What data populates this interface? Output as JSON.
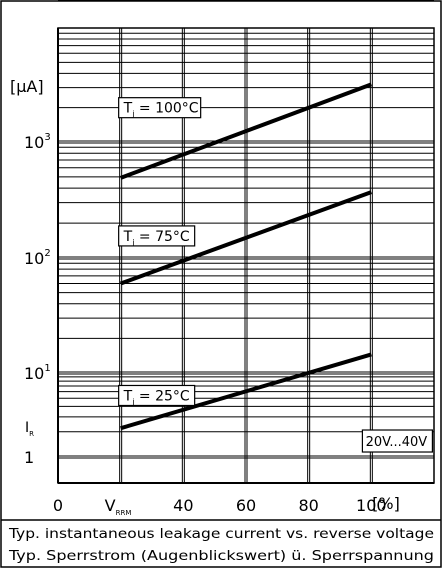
{
  "chart_data": {
    "type": "line",
    "y_scale": "log",
    "ylim": [
      0.6,
      10000
    ],
    "xlim": [
      0,
      120
    ],
    "x_ticks": [
      0,
      20,
      40,
      60,
      80,
      100
    ],
    "x_tick_labels": [
      "0",
      "",
      "40",
      "60",
      "80",
      "100"
    ],
    "x_label_main": "V",
    "x_label_sub": "RRM",
    "x_unit": "[%]",
    "y_ticks": [
      {
        "value": 1,
        "base": "1",
        "exp": ""
      },
      {
        "value": 10,
        "base": "10",
        "exp": "1"
      },
      {
        "value": 100,
        "base": "10",
        "exp": "2"
      },
      {
        "value": 1000,
        "base": "10",
        "exp": "3"
      },
      {
        "value": 10000,
        "base": "10",
        "exp": "4"
      }
    ],
    "y_unit": "[µA]",
    "y_symbol_main": "I",
    "y_symbol_sub": "R",
    "grid": true,
    "series": [
      {
        "label_main": "T",
        "label_sub": "j",
        "label_rest": " = 100°C",
        "label_x": 20,
        "label_y": 2000,
        "x": [
          20,
          100
        ],
        "y": [
          490,
          3200
        ]
      },
      {
        "label_main": "T",
        "label_sub": "j",
        "label_rest": " = 75°C",
        "label_x": 20,
        "label_y": 155,
        "x": [
          20,
          100
        ],
        "y": [
          60,
          370
        ]
      },
      {
        "label_main": "T",
        "label_sub": "j",
        "label_rest": " = 25°C",
        "label_x": 20,
        "label_y": 5.4,
        "x": [
          20,
          100
        ],
        "y": [
          2.2,
          14.5
        ]
      }
    ],
    "annotation": "20V...40V",
    "caption_lines": [
      "Typ. instantaneous leakage current vs. reverse voltage",
      "Typ. Sperrstrom (Augenblickswert) ü. Sperrspannung"
    ]
  }
}
